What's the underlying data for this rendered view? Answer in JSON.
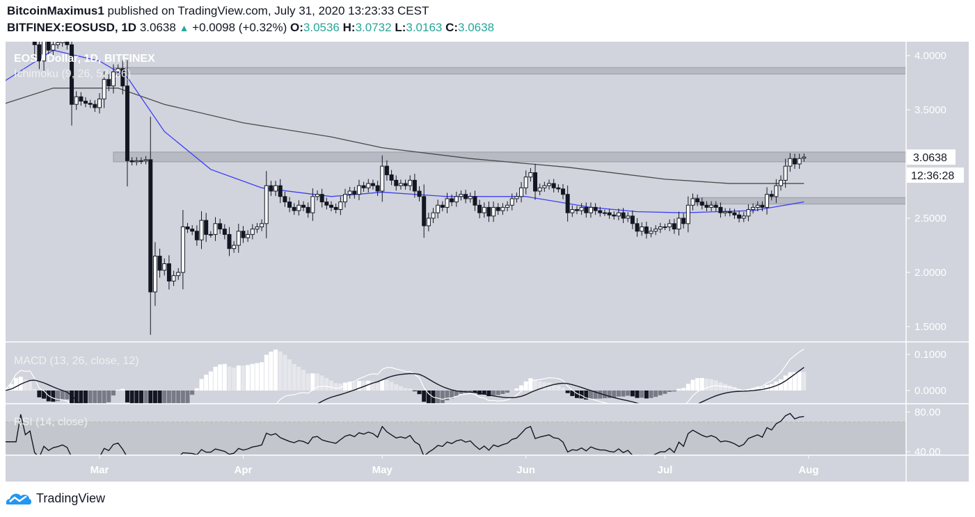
{
  "header": {
    "author": "BitcoinMaximus1",
    "published": "published on TradingView.com, July 31, 2020 13:23:33 CEST",
    "symbol": "BITFINEX:EOSUSD, 1D",
    "last": "3.0638",
    "change": "+0.0098 (+0.32%)",
    "o_label": "O:",
    "o": "3.0536",
    "h_label": "H:",
    "h": "3.0732",
    "l_label": "L:",
    "l": "3.0163",
    "c_label": "C:",
    "c": "3.0638"
  },
  "footer": {
    "brand": "TradingView",
    "logo_icon": "tradingview-cloud-icon"
  },
  "chart_data": {
    "type": "candlestick",
    "title": "EOS / Dollar, 1D, BITFINEX",
    "overlay_label": "Ichimoku (9, 26, 52, 26)",
    "colors": {
      "background": "#d1d4dc",
      "up": "#ffffff",
      "down": "#131722",
      "fast_line": "#3d3df5",
      "slow_line": "#4a4a4a",
      "zone": "#b7bac3"
    },
    "price_axis": {
      "ticks": [
        "4.0000",
        "3.5000",
        "2.5000",
        "2.0000",
        "1.5000"
      ],
      "tick_values": [
        4.0,
        3.5,
        2.5,
        2.0,
        1.5
      ]
    },
    "last_price_label": "3.0638",
    "countdown_label": "12:36:28",
    "time_axis": {
      "ticks": [
        "Mar",
        "Apr",
        "May",
        "Jun",
        "Jul",
        "Aug"
      ],
      "tick_dates": [
        "2020-03-01",
        "2020-04-01",
        "2020-05-01",
        "2020-06-01",
        "2020-07-01",
        "2020-08-01"
      ]
    },
    "last_open": 3.0536,
    "daily_closes": {
      "2020-02": [
        null,
        null,
        null,
        null,
        null,
        null,
        null,
        null,
        4.2,
        4.3,
        4.45,
        4.6,
        4.5,
        4.35,
        4.4,
        4.1,
        3.95,
        4.15,
        4.05,
        4.1,
        4.12,
        4.15,
        4.1,
        3.55,
        3.62,
        3.58,
        3.56,
        3.55,
        3.52
      ],
      "2020-03": [
        3.6,
        3.78,
        3.72,
        3.85,
        3.88,
        3.72,
        3.03,
        3.02,
        3.03,
        3.03,
        3.04,
        1.82,
        2.15,
        2.02,
        2.08,
        1.92,
        1.97,
        2.0,
        2.42,
        2.4,
        2.38,
        2.3,
        2.48,
        2.35,
        2.35,
        2.45,
        2.4,
        2.35,
        2.22,
        2.25,
        2.38
      ],
      "2020-04": [
        2.32,
        2.35,
        2.4,
        2.42,
        2.45,
        2.8,
        2.75,
        2.8,
        2.7,
        2.65,
        2.6,
        2.57,
        2.62,
        2.6,
        2.55,
        2.7,
        2.72,
        2.65,
        2.62,
        2.6,
        2.58,
        2.65,
        2.72,
        2.75,
        2.72,
        2.8,
        2.78,
        2.82,
        2.8,
        2.75
      ],
      "2020-05": [
        2.98,
        2.9,
        2.85,
        2.8,
        2.82,
        2.8,
        2.85,
        2.75,
        2.7,
        2.43,
        2.5,
        2.55,
        2.62,
        2.6,
        2.68,
        2.65,
        2.7,
        2.72,
        2.68,
        2.7,
        2.62,
        2.55,
        2.6,
        2.52,
        2.6,
        2.57,
        2.6,
        2.62,
        2.68,
        2.7,
        2.78
      ],
      "2020-06": [
        2.88,
        2.92,
        2.75,
        2.78,
        2.8,
        2.82,
        2.78,
        2.77,
        2.72,
        2.55,
        2.58,
        2.57,
        2.6,
        2.55,
        2.6,
        2.57,
        2.55,
        2.55,
        2.53,
        2.52,
        2.55,
        2.5,
        2.52,
        2.45,
        2.38,
        2.42,
        2.36,
        2.38,
        2.4,
        2.42
      ],
      "2020-07": [
        2.42,
        2.45,
        2.4,
        2.5,
        2.45,
        2.62,
        2.68,
        2.65,
        2.62,
        2.6,
        2.62,
        2.6,
        2.55,
        2.56,
        2.55,
        2.53,
        2.5,
        2.52,
        2.58,
        2.6,
        2.62,
        2.6,
        2.72,
        2.7,
        2.8,
        2.85,
        2.98,
        3.05,
        3.0,
        3.05,
        3.0638
      ]
    },
    "fast_line": [
      [
        "2020-02-09",
        3.75
      ],
      [
        "2020-02-20",
        4.05
      ],
      [
        "2020-03-01",
        3.95
      ],
      [
        "2020-03-07",
        3.8
      ],
      [
        "2020-03-15",
        3.3
      ],
      [
        "2020-03-25",
        2.95
      ],
      [
        "2020-04-05",
        2.78
      ],
      [
        "2020-04-20",
        2.7
      ],
      [
        "2020-05-01",
        2.74
      ],
      [
        "2020-05-15",
        2.7
      ],
      [
        "2020-06-01",
        2.7
      ],
      [
        "2020-06-15",
        2.6
      ],
      [
        "2020-06-25",
        2.56
      ],
      [
        "2020-07-05",
        2.55
      ],
      [
        "2020-07-20",
        2.57
      ],
      [
        "2020-07-31",
        2.65
      ]
    ],
    "slow_line": [
      [
        "2020-02-09",
        3.55
      ],
      [
        "2020-02-20",
        3.7
      ],
      [
        "2020-03-05",
        3.7
      ],
      [
        "2020-03-15",
        3.55
      ],
      [
        "2020-04-01",
        3.38
      ],
      [
        "2020-04-20",
        3.25
      ],
      [
        "2020-05-01",
        3.15
      ],
      [
        "2020-05-20",
        3.05
      ],
      [
        "2020-06-10",
        2.97
      ],
      [
        "2020-07-01",
        2.86
      ],
      [
        "2020-07-15",
        2.82
      ],
      [
        "2020-07-31",
        2.82
      ]
    ],
    "zones": [
      {
        "from": "2020-03-04",
        "low": 3.83,
        "high": 3.89
      },
      {
        "from": "2020-03-04",
        "low": 3.02,
        "high": 3.11
      },
      {
        "from": "2020-07-07",
        "low": 2.63,
        "high": 2.69
      }
    ],
    "macd": {
      "label": "MACD (13, 26, close, 12)",
      "fast": 13,
      "slow": 26,
      "signal": 12,
      "ticks": [
        "0.1000",
        "0.0000"
      ],
      "tick_values": [
        0.1,
        0.0
      ]
    },
    "rsi": {
      "label": "RSI (14, close)",
      "period": 14,
      "ticks": [
        "80.00",
        "40.00"
      ],
      "tick_values": [
        80,
        40
      ],
      "band": [
        30,
        70
      ]
    }
  }
}
